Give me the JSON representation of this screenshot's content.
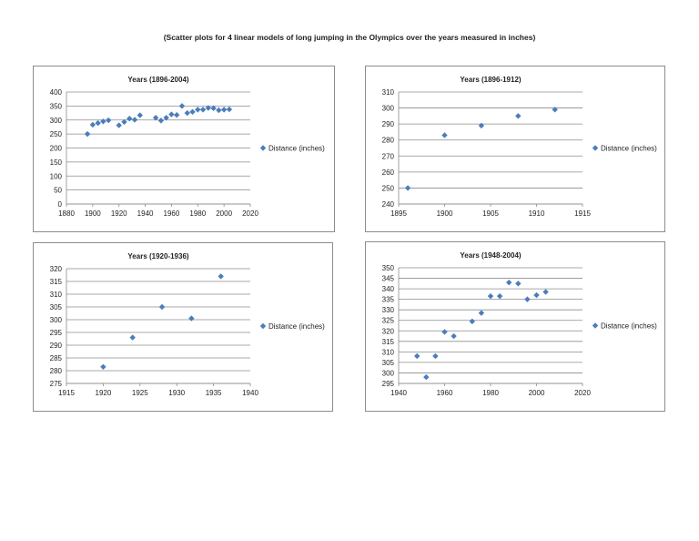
{
  "page": {
    "title": "(Scatter plots for 4 linear models of long jumping in the Olympics over the years measured in inches)"
  },
  "colors": {
    "marker": "#4a7ebb",
    "grid": "#8c8c8c",
    "text": "#222222"
  },
  "chart_data": [
    {
      "type": "scatter",
      "title": "Years   (1896-2004)",
      "legend": "Distance (inches)",
      "legend_position": "right",
      "grid": true,
      "xlim": [
        1880,
        2020
      ],
      "x_ticks": [
        1880,
        1900,
        1920,
        1940,
        1960,
        1980,
        2000,
        2020
      ],
      "ylim": [
        0,
        400
      ],
      "y_ticks": [
        0,
        50,
        100,
        150,
        200,
        250,
        300,
        350,
        400
      ],
      "points": [
        [
          1896,
          250
        ],
        [
          1900,
          283
        ],
        [
          1904,
          289
        ],
        [
          1908,
          295
        ],
        [
          1912,
          299
        ],
        [
          1920,
          281
        ],
        [
          1924,
          293
        ],
        [
          1928,
          305
        ],
        [
          1932,
          301
        ],
        [
          1936,
          317
        ],
        [
          1948,
          308
        ],
        [
          1952,
          298
        ],
        [
          1956,
          308
        ],
        [
          1960,
          320
        ],
        [
          1964,
          318
        ],
        [
          1968,
          350
        ],
        [
          1972,
          325
        ],
        [
          1976,
          329
        ],
        [
          1980,
          337
        ],
        [
          1984,
          337
        ],
        [
          1988,
          343
        ],
        [
          1992,
          342
        ],
        [
          1996,
          335
        ],
        [
          2000,
          337
        ],
        [
          2004,
          338
        ]
      ]
    },
    {
      "type": "scatter",
      "title": "Years   (1896-1912)",
      "legend": "Distance (inches)",
      "legend_position": "right",
      "grid": true,
      "xlim": [
        1895,
        1915
      ],
      "x_ticks": [
        1895,
        1900,
        1905,
        1910,
        1915
      ],
      "ylim": [
        240,
        310
      ],
      "y_ticks": [
        240,
        250,
        260,
        270,
        280,
        290,
        300,
        310
      ],
      "points": [
        [
          1896,
          250
        ],
        [
          1900,
          283
        ],
        [
          1904,
          289
        ],
        [
          1908,
          295
        ],
        [
          1912,
          299
        ]
      ]
    },
    {
      "type": "scatter",
      "title": "Years   (1920-1936)",
      "legend": "Distance (inches)",
      "legend_position": "right",
      "grid": true,
      "xlim": [
        1915,
        1940
      ],
      "x_ticks": [
        1915,
        1920,
        1925,
        1930,
        1935,
        1940
      ],
      "ylim": [
        275,
        320
      ],
      "y_ticks": [
        275,
        280,
        285,
        290,
        295,
        300,
        305,
        310,
        315,
        320
      ],
      "points": [
        [
          1920,
          281.5
        ],
        [
          1924,
          293
        ],
        [
          1928,
          305
        ],
        [
          1932,
          300.5
        ],
        [
          1936,
          317
        ]
      ]
    },
    {
      "type": "scatter",
      "title": "Years   (1948-2004)",
      "legend": "Distance (inches)",
      "legend_position": "right",
      "grid": true,
      "xlim": [
        1940,
        2020
      ],
      "x_ticks": [
        1940,
        1960,
        1980,
        2000,
        2020
      ],
      "ylim": [
        295,
        350
      ],
      "y_ticks": [
        295,
        300,
        305,
        310,
        315,
        320,
        325,
        330,
        335,
        340,
        345,
        350
      ],
      "points": [
        [
          1948,
          308
        ],
        [
          1952,
          298
        ],
        [
          1956,
          308
        ],
        [
          1960,
          319.5
        ],
        [
          1964,
          317.5
        ],
        [
          1972,
          324.5
        ],
        [
          1976,
          328.5
        ],
        [
          1980,
          336.5
        ],
        [
          1984,
          336.5
        ],
        [
          1988,
          343
        ],
        [
          1992,
          342.5
        ],
        [
          1996,
          335
        ],
        [
          2000,
          337
        ],
        [
          2004,
          338.5
        ]
      ]
    }
  ]
}
